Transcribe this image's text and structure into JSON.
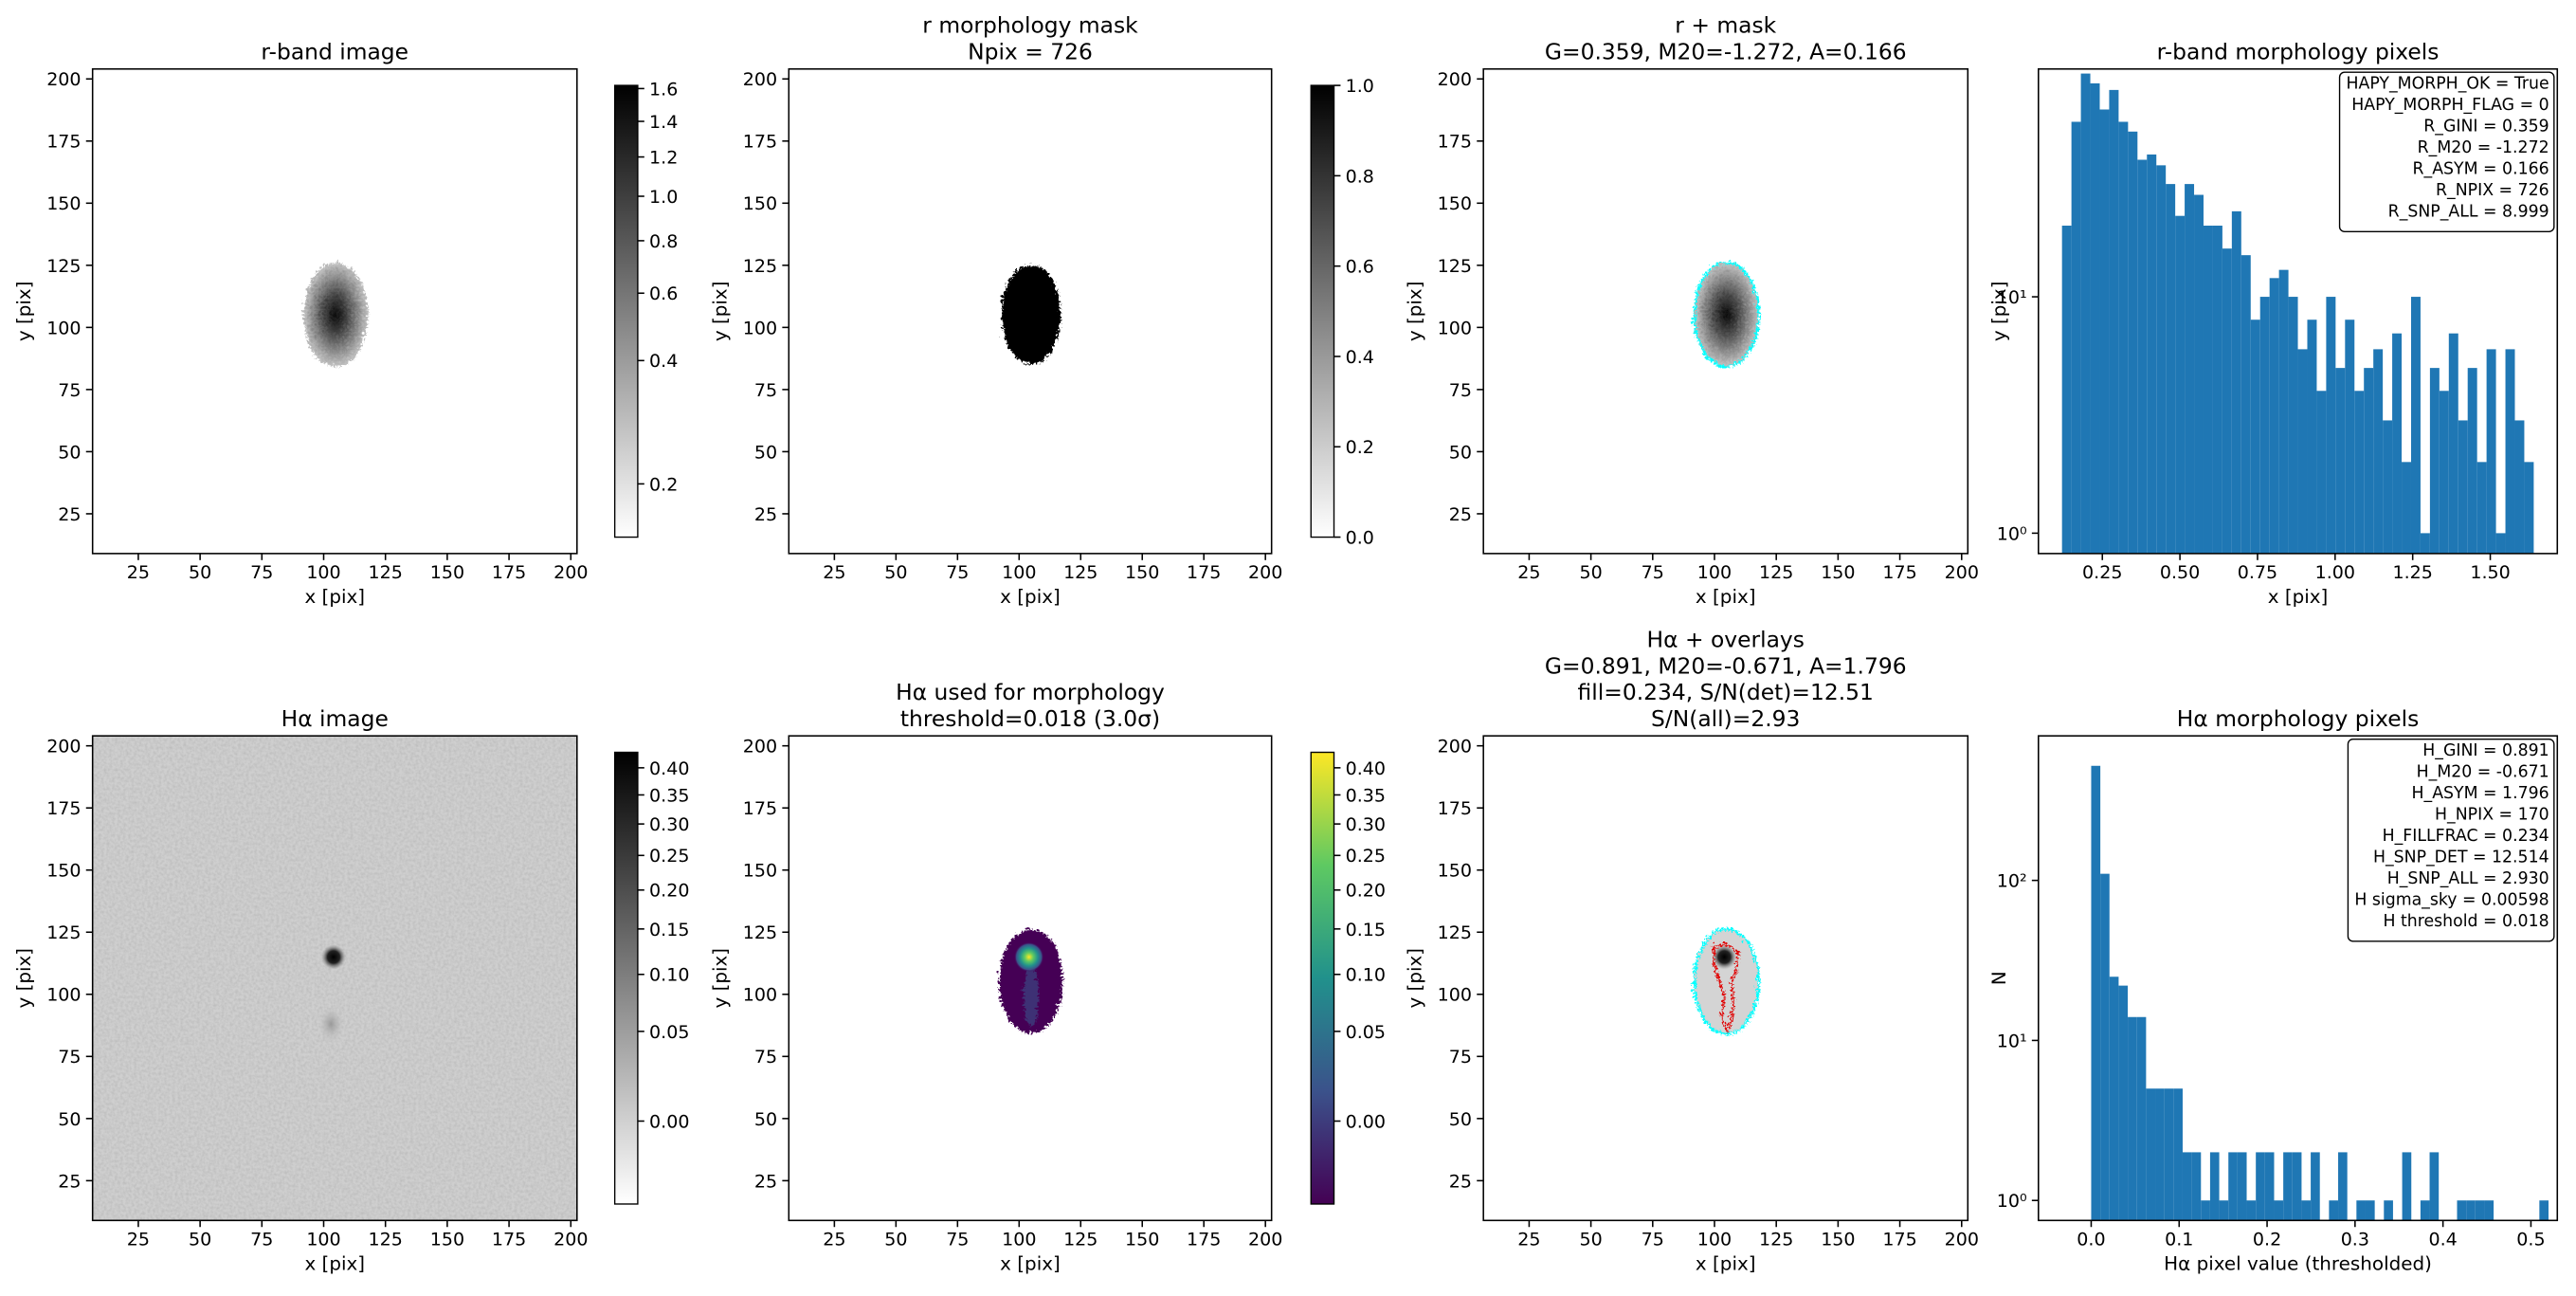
{
  "chart_data": [
    {
      "type": "image",
      "title": [
        "r-band image"
      ],
      "xlabel": "x [pix]",
      "ylabel": "y [pix]",
      "xlim": [
        6.5,
        202.5
      ],
      "ylim": [
        9,
        204
      ],
      "xticks": [
        25,
        50,
        75,
        100,
        125,
        150,
        175,
        200
      ],
      "yticks": [
        25,
        50,
        75,
        100,
        125,
        150,
        175,
        200
      ],
      "colorbar": {
        "colormap": "gray_r",
        "norm": "sqrt",
        "lim": [
          0.18,
          1.62
        ],
        "ticks": [
          0.2,
          0.4,
          0.6,
          0.8,
          {
            "value": 1,
            "label": "1.0"
          },
          1.2,
          1.4,
          1.6
        ]
      }
    },
    {
      "type": "image",
      "title": [
        "r morphology mask",
        "Npix = 726"
      ],
      "xlabel": "x [pix]",
      "ylabel": "y [pix]",
      "xlim": [
        6.5,
        202.5
      ],
      "ylim": [
        9,
        204
      ],
      "xticks": [
        25,
        50,
        75,
        100,
        125,
        150,
        175,
        200
      ],
      "yticks": [
        25,
        50,
        75,
        100,
        125,
        150,
        175,
        200
      ],
      "colorbar": {
        "colormap": "gray_r",
        "norm": "linear",
        "lim": [
          0,
          1
        ],
        "ticks": [
          {
            "value": 0,
            "label": "0.0"
          },
          0.2,
          0.4,
          0.6,
          0.8,
          {
            "value": 1,
            "label": "1.0"
          }
        ]
      }
    },
    {
      "type": "image",
      "title": [
        "r + mask",
        "G=0.359, M20=-1.272, A=0.166"
      ],
      "xlabel": "x [pix]",
      "ylabel": "y [pix]",
      "xlim": [
        6.5,
        202.5
      ],
      "ylim": [
        9,
        204
      ],
      "xticks": [
        25,
        50,
        75,
        100,
        125,
        150,
        175,
        200
      ],
      "yticks": [
        25,
        50,
        75,
        100,
        125,
        150,
        175,
        200
      ]
    },
    {
      "type": "histogram",
      "title": [
        "r-band morphology pixels"
      ],
      "xlabel": "x [pix]",
      "ylabel": "y [pix]",
      "color": "#1f77b4",
      "yscale": "log",
      "xlim": [
        0.044,
        1.716
      ],
      "ylim": [
        0.82,
        92
      ],
      "xticks": [
        0.25,
        {
          "value": 0.5,
          "label": "0.50"
        },
        0.75,
        {
          "value": 1,
          "label": "1.00"
        },
        1.25,
        {
          "value": 1.5,
          "label": "1.50"
        }
      ],
      "yticks": [
        {
          "value": 1,
          "label": "10⁰"
        },
        {
          "value": 10,
          "label": "10¹"
        }
      ],
      "bins": [
        0.12,
        0.1504,
        0.1808,
        0.2112,
        0.2416,
        0.272,
        0.3024,
        0.3328,
        0.3632,
        0.3936,
        0.424,
        0.4544,
        0.4848,
        0.5152,
        0.5456,
        0.576,
        0.6064,
        0.6368,
        0.6672,
        0.6976,
        0.728,
        0.7584,
        0.7888,
        0.8192,
        0.8496,
        0.88,
        0.9104,
        0.9408,
        0.9712,
        1.0016,
        1.032,
        1.0624,
        1.0928,
        1.1232,
        1.1536,
        1.184,
        1.2144,
        1.2448,
        1.2752,
        1.3056,
        1.336,
        1.3664,
        1.3968,
        1.4272,
        1.4576,
        1.488,
        1.5184,
        1.5488,
        1.5792,
        1.6096,
        1.64
      ],
      "values": [
        20,
        55,
        88,
        80,
        62,
        75,
        55,
        50,
        38,
        40,
        36,
        30,
        22,
        30,
        27,
        20,
        20,
        16,
        23,
        15,
        8,
        10,
        12,
        13,
        10,
        6,
        8,
        4,
        10,
        5,
        8,
        4,
        5,
        6,
        3,
        7,
        2,
        10,
        1,
        5,
        4,
        7,
        3,
        5,
        2,
        6,
        1,
        6,
        3,
        2
      ],
      "annotation": [
        "HAPY_MORPH_OK = True",
        "HAPY_MORPH_FLAG = 0",
        "R_GINI = 0.359",
        "R_M20 = -1.272",
        "R_ASYM = 0.166",
        "R_NPIX = 726",
        "R_SNP_ALL = 8.999"
      ]
    },
    {
      "type": "image",
      "title": [
        "Hα image"
      ],
      "xlabel": "x [pix]",
      "ylabel": "y [pix]",
      "xlim": [
        6.5,
        202.5
      ],
      "ylim": [
        9,
        204
      ],
      "xticks": [
        25,
        50,
        75,
        100,
        125,
        150,
        175,
        200
      ],
      "yticks": [
        25,
        50,
        75,
        100,
        125,
        150,
        175,
        200
      ],
      "colorbar": {
        "colormap": "gray_r",
        "norm": "sqrt",
        "lim": [
          -0.015,
          0.43
        ],
        "ticks": [
          {
            "value": 0,
            "label": "0.00"
          },
          0.05,
          {
            "value": 0.1,
            "label": "0.10"
          },
          0.15,
          {
            "value": 0.2,
            "label": "0.20"
          },
          0.25,
          {
            "value": 0.3,
            "label": "0.30"
          },
          0.35,
          {
            "value": 0.4,
            "label": "0.40"
          }
        ]
      }
    },
    {
      "type": "image",
      "title": [
        "Hα used for morphology",
        "threshold=0.018 (3.0σ)"
      ],
      "xlabel": "x [pix]",
      "ylabel": "y [pix]",
      "xlim": [
        6.5,
        202.5
      ],
      "ylim": [
        9,
        204
      ],
      "xticks": [
        25,
        50,
        75,
        100,
        125,
        150,
        175,
        200
      ],
      "yticks": [
        25,
        50,
        75,
        100,
        125,
        150,
        175,
        200
      ],
      "colorbar": {
        "colormap": "viridis",
        "norm": "sqrt",
        "lim": [
          -0.015,
          0.43
        ],
        "ticks": [
          {
            "value": 0,
            "label": "0.00"
          },
          0.05,
          {
            "value": 0.1,
            "label": "0.10"
          },
          0.15,
          {
            "value": 0.2,
            "label": "0.20"
          },
          0.25,
          {
            "value": 0.3,
            "label": "0.30"
          },
          0.35,
          {
            "value": 0.4,
            "label": "0.40"
          }
        ]
      }
    },
    {
      "type": "image",
      "title": [
        "Hα + overlays",
        "G=0.891, M20=-0.671, A=1.796",
        "fill=0.234, S/N(det)=12.51",
        "S/N(all)=2.93"
      ],
      "xlabel": "x [pix]",
      "ylabel": "y [pix]",
      "xlim": [
        6.5,
        202.5
      ],
      "ylim": [
        9,
        204
      ],
      "xticks": [
        25,
        50,
        75,
        100,
        125,
        150,
        175,
        200
      ],
      "yticks": [
        25,
        50,
        75,
        100,
        125,
        150,
        175,
        200
      ]
    },
    {
      "type": "histogram",
      "title": [
        "Hα morphology pixels"
      ],
      "xlabel": "Hα pixel value (thresholded)",
      "ylabel": "N",
      "color": "#1f77b4",
      "yscale": "log",
      "xlim": [
        -0.06,
        0.53
      ],
      "ylim": [
        0.75,
        800
      ],
      "xticks": [
        {
          "value": 0,
          "label": "0.0"
        },
        0.1,
        0.2,
        0.3,
        0.4,
        0.5
      ],
      "yticks": [
        {
          "value": 1,
          "label": "10⁰"
        },
        {
          "value": 10,
          "label": "10¹"
        },
        {
          "value": 100,
          "label": "10²"
        }
      ],
      "bins": [
        0,
        0.0104,
        0.0208,
        0.0312,
        0.0416,
        0.052,
        0.0624,
        0.0728,
        0.0832,
        0.0936,
        0.104,
        0.1144,
        0.1248,
        0.1352,
        0.1456,
        0.156,
        0.1664,
        0.1768,
        0.1872,
        0.1976,
        0.208,
        0.2184,
        0.2288,
        0.2392,
        0.2496,
        0.26,
        0.2704,
        0.2808,
        0.2912,
        0.3016,
        0.312,
        0.3224,
        0.3328,
        0.3432,
        0.3536,
        0.364,
        0.3744,
        0.3848,
        0.3952,
        0.4056,
        0.416,
        0.4264,
        0.4368,
        0.4472,
        0.4576,
        0.468,
        0.4784,
        0.4888,
        0.4992,
        0.5096,
        0.52
      ],
      "values": [
        520,
        110,
        25,
        22,
        14,
        14,
        5,
        5,
        5,
        5,
        2,
        2,
        1,
        2,
        1,
        2,
        2,
        1,
        2,
        2,
        1,
        2,
        2,
        1,
        2,
        0,
        1,
        2,
        0,
        1,
        1,
        0,
        1,
        0,
        2,
        0,
        1,
        2,
        0,
        0,
        1,
        1,
        1,
        1,
        0,
        0,
        0,
        0,
        0,
        1
      ],
      "annotation": [
        "H_GINI = 0.891",
        "H_M20 = -0.671",
        "H_ASYM = 1.796",
        "H_NPIX = 170",
        "H_FILLFRAC = 0.234",
        "H_SNP_DET = 12.514",
        "H_SNP_ALL = 2.930",
        "H sigma_sky = 0.00598",
        "H threshold = 0.018"
      ]
    }
  ]
}
